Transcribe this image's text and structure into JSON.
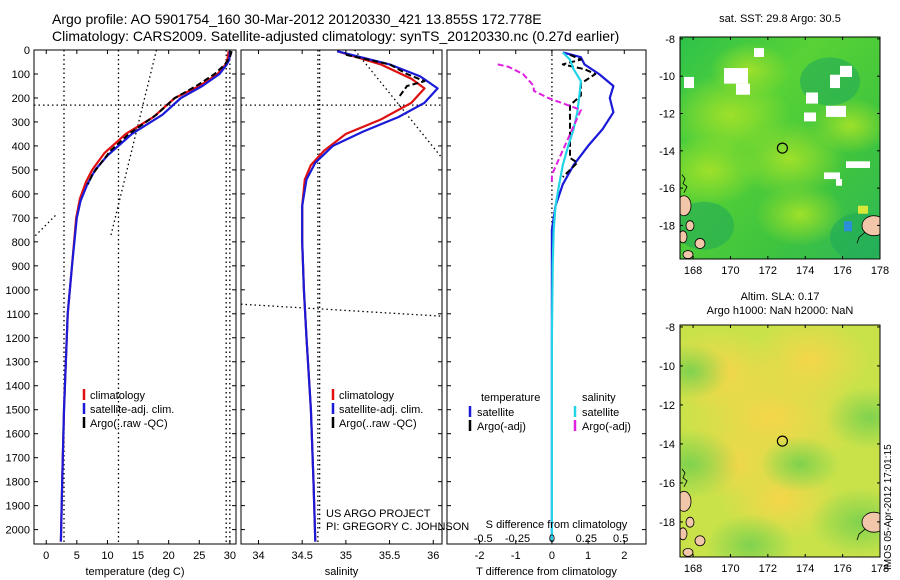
{
  "title_line1": "Argo profile: AO 5901754_160 30-Mar-2012 20120330_421 13.855S 172.778E",
  "title_line2": "Climatology: CARS2009. Satellite-adjusted climatology: synTS_20120330.nc (0.27d earlier)",
  "map1_title": "sat. SST: 29.8 Argo: 30.5",
  "map2_title_line1": "Altim. SLA: 0.17",
  "map2_title_line2": "Argo h1000: NaN h2000: NaN",
  "timestamp": "IMOS 05-Apr-2012 17:01:15",
  "credit_line1": "US ARGO PROJECT",
  "credit_line2": "PI: GREGORY C. JOHNSON",
  "colors": {
    "red": "#e01010",
    "blue": "#1a1ad8",
    "black": "#000000",
    "cyan": "#22d4e8",
    "magenta": "#e020e0",
    "land": "#f2c6a8",
    "white_cloud": "#ffffff"
  },
  "chart_data": [
    {
      "type": "line",
      "name": "temperature panel",
      "xlabel": "temperature (deg C)",
      "xticks": [
        0,
        5,
        10,
        15,
        20,
        25,
        30
      ],
      "xlim": [
        -2,
        31
      ],
      "yticks": [
        0,
        100,
        200,
        300,
        400,
        500,
        600,
        700,
        800,
        900,
        1000,
        1100,
        1200,
        1300,
        1400,
        1500,
        1600,
        1700,
        1800,
        1900,
        2000
      ],
      "ylim": [
        2060,
        0
      ],
      "legend": [
        "climatology",
        "satellite-adj. clim.",
        "Argo(..raw -QC)"
      ],
      "series": [
        {
          "name": "climatology",
          "color": "red",
          "points": [
            [
              29.8,
              5
            ],
            [
              29.6,
              40
            ],
            [
              29.3,
              60
            ],
            [
              28.0,
              100
            ],
            [
              25.0,
              150
            ],
            [
              21.0,
              200
            ],
            [
              17.5,
              280
            ],
            [
              13.0,
              350
            ],
            [
              9.5,
              430
            ],
            [
              7.5,
              500
            ],
            [
              6.5,
              550
            ],
            [
              5.5,
              620
            ],
            [
              4.9,
              700
            ],
            [
              4.2,
              900
            ],
            [
              3.5,
              1100
            ],
            [
              2.9,
              1500
            ],
            [
              2.6,
              1800
            ],
            [
              2.4,
              2050
            ]
          ]
        },
        {
          "name": "satellite-adj. clim.",
          "color": "blue",
          "points": [
            [
              30.0,
              5
            ],
            [
              29.9,
              40
            ],
            [
              29.5,
              60
            ],
            [
              28.3,
              100
            ],
            [
              25.5,
              150
            ],
            [
              22.0,
              200
            ],
            [
              19.0,
              270
            ],
            [
              14.0,
              350
            ],
            [
              10.0,
              440
            ],
            [
              8.0,
              500
            ],
            [
              6.7,
              560
            ],
            [
              5.6,
              630
            ],
            [
              5.0,
              700
            ],
            [
              4.2,
              900
            ],
            [
              3.5,
              1100
            ],
            [
              2.9,
              1500
            ],
            [
              2.6,
              1800
            ],
            [
              2.4,
              2050
            ]
          ]
        },
        {
          "name": "Argo(..raw -QC)",
          "color": "black",
          "points": [
            [
              30.3,
              5
            ],
            [
              30.0,
              30
            ],
            [
              29.2,
              60
            ],
            [
              27.5,
              100
            ],
            [
              24.5,
              150
            ],
            [
              21.0,
              200
            ],
            [
              18.0,
              270
            ],
            [
              13.5,
              350
            ],
            [
              10.5,
              420
            ],
            [
              9.0,
              470
            ],
            [
              7.5,
              520
            ],
            [
              6.8,
              560
            ]
          ]
        }
      ],
      "reference_lines": [
        {
          "kind": "vertical",
          "values": [
            2.9,
            11.8,
            29.4,
            30.0
          ]
        },
        {
          "kind": "horizontal",
          "value": 230
        },
        {
          "kind": "slanted",
          "from": [
            18,
            0
          ],
          "to": [
            10.5,
            780
          ]
        },
        {
          "kind": "slanted",
          "from": [
            1.5,
            690
          ],
          "to": [
            -2,
            780
          ]
        }
      ]
    },
    {
      "type": "line",
      "name": "salinity panel",
      "xlabel": "salinity",
      "xticks": [
        34,
        34.5,
        35,
        35.5,
        36
      ],
      "xlim": [
        33.8,
        36.1
      ],
      "yticks": [
        0,
        100,
        200,
        300,
        400,
        500,
        600,
        700,
        800,
        900,
        1000,
        1100,
        1200,
        1300,
        1400,
        1500,
        1600,
        1700,
        1800,
        1900,
        2000
      ],
      "ylim": [
        2060,
        0
      ],
      "legend": [
        "climatology",
        "satellite-adj. clim.",
        "Argo(..raw -QC)"
      ],
      "series": [
        {
          "name": "climatology",
          "color": "red",
          "points": [
            [
              34.9,
              5
            ],
            [
              35.4,
              60
            ],
            [
              35.75,
              120
            ],
            [
              35.9,
              160
            ],
            [
              35.75,
              220
            ],
            [
              35.4,
              290
            ],
            [
              35.0,
              350
            ],
            [
              34.75,
              420
            ],
            [
              34.6,
              480
            ],
            [
              34.53,
              540
            ],
            [
              34.5,
              650
            ],
            [
              34.5,
              800
            ],
            [
              34.52,
              1000
            ],
            [
              34.55,
              1200
            ],
            [
              34.6,
              1500
            ],
            [
              34.63,
              1800
            ],
            [
              34.65,
              2050
            ]
          ]
        },
        {
          "name": "satellite-adj. clim.",
          "color": "blue",
          "points": [
            [
              34.9,
              5
            ],
            [
              35.5,
              60
            ],
            [
              35.85,
              110
            ],
            [
              36.05,
              160
            ],
            [
              35.9,
              220
            ],
            [
              35.6,
              280
            ],
            [
              35.2,
              340
            ],
            [
              34.85,
              400
            ],
            [
              34.65,
              470
            ],
            [
              34.55,
              540
            ],
            [
              34.5,
              650
            ],
            [
              34.5,
              800
            ],
            [
              34.52,
              1000
            ],
            [
              34.55,
              1200
            ],
            [
              34.6,
              1500
            ],
            [
              34.63,
              1800
            ],
            [
              34.65,
              2050
            ]
          ]
        },
        {
          "name": "Argo(..raw -QC)",
          "color": "black",
          "points": [
            [
              35.0,
              20
            ],
            [
              35.5,
              60
            ],
            [
              35.7,
              100
            ],
            [
              35.9,
              130
            ],
            [
              35.7,
              150
            ],
            [
              35.6,
              200
            ]
          ]
        }
      ],
      "reference_lines": [
        {
          "kind": "vertical",
          "values": [
            34.68
          ]
        },
        {
          "kind": "horizontal",
          "value": 230
        },
        {
          "kind": "slanted",
          "from": [
            34.7,
            0
          ],
          "to": [
            34.7,
            2000
          ]
        },
        {
          "kind": "slanted",
          "from": [
            35.1,
            0
          ],
          "to": [
            36.1,
            450
          ]
        },
        {
          "kind": "slanted",
          "from": [
            33.8,
            1060
          ],
          "to": [
            36.1,
            1110
          ]
        }
      ]
    },
    {
      "type": "line",
      "name": "difference panel",
      "xlabel": "T difference from climatology",
      "xlabel_top": "S difference from climatology",
      "xticks": [
        -2,
        -1,
        0,
        1,
        2
      ],
      "xlim": [
        -2.9,
        2.6
      ],
      "sticks_labels": [
        "-0.5",
        "-0.25",
        "0",
        "0.25",
        "0.5"
      ],
      "yticks": [
        0,
        100,
        200,
        300,
        400,
        500,
        600,
        700,
        800,
        900,
        1000,
        1100,
        1200,
        1300,
        1400,
        1500,
        1600,
        1700,
        1800,
        1900,
        2000
      ],
      "ylim": [
        2060,
        0
      ],
      "legend_left": {
        "title": "temperature",
        "items": [
          "satellite",
          "Argo(-adj)"
        ]
      },
      "legend_right": {
        "title": "salinity",
        "items": [
          "satellite",
          "Argo(-adj)"
        ]
      },
      "series": [
        {
          "name": "temperature satellite",
          "color": "blue",
          "points": [
            [
              0.3,
              10
            ],
            [
              0.8,
              30
            ],
            [
              0.9,
              60
            ],
            [
              1.3,
              100
            ],
            [
              1.7,
              150
            ],
            [
              1.6,
              200
            ],
            [
              1.7,
              260
            ],
            [
              1.4,
              330
            ],
            [
              1.0,
              400
            ],
            [
              0.6,
              480
            ],
            [
              0.3,
              560
            ],
            [
              0.1,
              650
            ],
            [
              0,
              750
            ],
            [
              0,
              900
            ],
            [
              0,
              1200
            ],
            [
              0,
              2050
            ]
          ]
        },
        {
          "name": "temperature Argo(-adj)",
          "color": "black",
          "points": [
            [
              0.5,
              20
            ],
            [
              0.8,
              40
            ],
            [
              0.3,
              60
            ],
            [
              0.9,
              80
            ],
            [
              1.2,
              100
            ],
            [
              0.8,
              140
            ],
            [
              0.8,
              190
            ],
            [
              0.5,
              230
            ],
            [
              0.5,
              450
            ],
            [
              0.7,
              470
            ],
            [
              0.5,
              500
            ],
            [
              0.3,
              530
            ]
          ]
        },
        {
          "name": "salinity satellite",
          "color": "cyan",
          "points": [
            [
              0.3,
              10
            ],
            [
              0.5,
              40
            ],
            [
              0.6,
              80
            ],
            [
              0.8,
              130
            ],
            [
              0.75,
              200
            ],
            [
              0.7,
              260
            ],
            [
              0.6,
              330
            ],
            [
              0.45,
              400
            ],
            [
              0.3,
              480
            ],
            [
              0.2,
              560
            ],
            [
              0.1,
              650
            ],
            [
              0.05,
              750
            ],
            [
              0.02,
              900
            ],
            [
              0,
              1200
            ],
            [
              0,
              2050
            ]
          ]
        },
        {
          "name": "salinity Argo(-adj)",
          "color": "magenta",
          "points": [
            [
              -1.5,
              60
            ],
            [
              -1.2,
              70
            ],
            [
              -0.8,
              100
            ],
            [
              -0.5,
              150
            ],
            [
              -0.5,
              170
            ],
            [
              -0.1,
              200
            ],
            [
              0.8,
              250
            ],
            [
              0,
              520
            ],
            [
              0,
              560
            ]
          ]
        }
      ],
      "reference_lines": [
        {
          "kind": "vertical",
          "values": [
            0
          ]
        }
      ]
    },
    {
      "type": "heatmap",
      "name": "sst map",
      "title": "sat. SST: 29.8 Argo: 30.5",
      "xticks": [
        168,
        170,
        172,
        174,
        176,
        178
      ],
      "yticks": [
        -8,
        -10,
        -12,
        -14,
        -16,
        -18
      ],
      "xlim": [
        167.3,
        178
      ],
      "ylim": [
        -19.8,
        -7.9
      ],
      "argo_position": [
        172.778,
        -13.855
      ]
    },
    {
      "type": "heatmap",
      "name": "sla map",
      "title": "Altim. SLA: 0.17 / Argo h1000: NaN h2000: NaN",
      "xticks": [
        168,
        170,
        172,
        174,
        176,
        178
      ],
      "yticks": [
        -8,
        -10,
        -12,
        -14,
        -16,
        -18
      ],
      "xlim": [
        167.3,
        178
      ],
      "ylim": [
        -19.8,
        -7.9
      ],
      "argo_position": [
        172.778,
        -13.855
      ]
    }
  ]
}
